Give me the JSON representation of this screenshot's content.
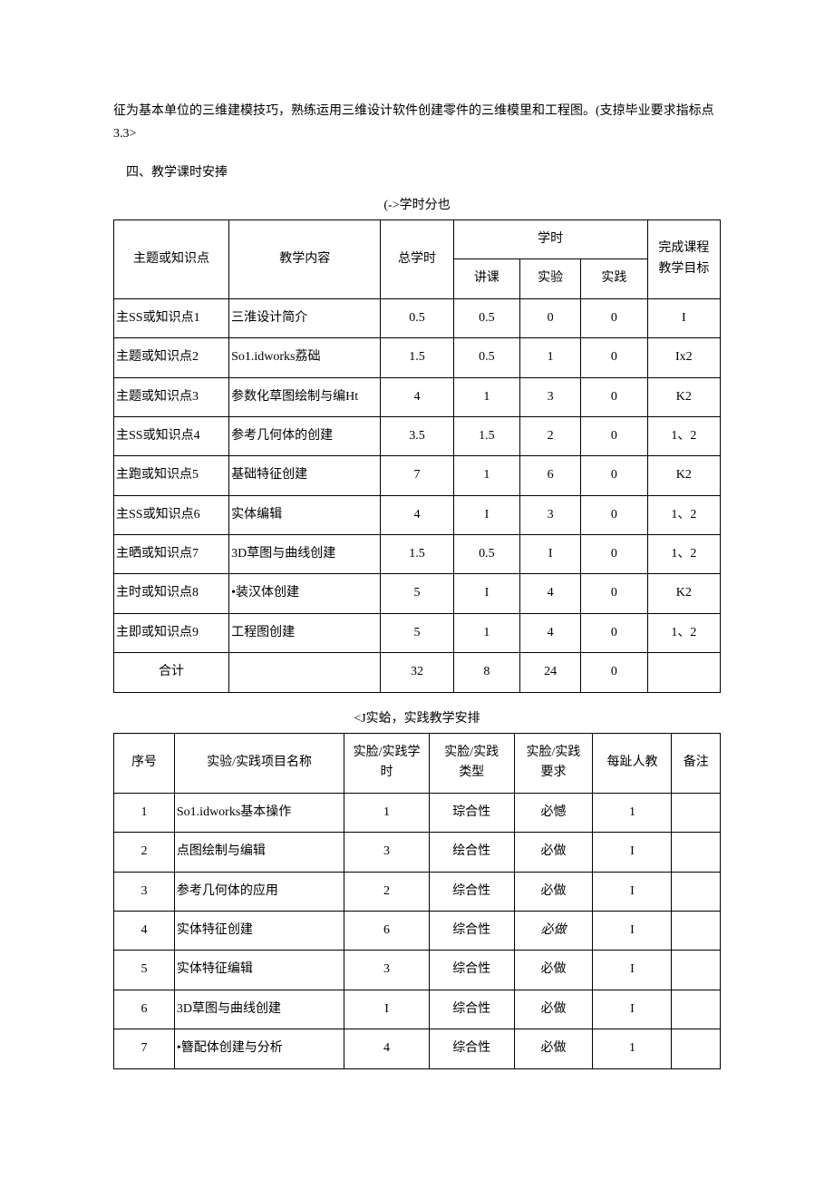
{
  "intro_para": "征为基本单位的三维建模技巧，熟练运用三维设计软件创建零件的三维模里和工程图。(支掠毕业要求指标点3.3>",
  "section4_title": "四、教学课时安捧",
  "table1_caption": "(->学时分也",
  "table1": {
    "header": {
      "c0": "主题或知识点",
      "c1": "教学内容",
      "c2": "总学时",
      "c3_group": "学时",
      "c3": "讲课",
      "c4": "实验",
      "c5": "实践",
      "c6_top": "完成课程",
      "c6_bot": "教学目标"
    },
    "rows": [
      {
        "c0": "主SS或知识点1",
        "c1": "三淮设计简介",
        "c2": "0.5",
        "c3": "0.5",
        "c4": "0",
        "c5": "0",
        "c6": "I"
      },
      {
        "c0": "主题或知识点2",
        "c1": "So1.idworks荔础",
        "c2": "1.5",
        "c3": "0.5",
        "c4": "1",
        "c5": "0",
        "c6": "Ix2"
      },
      {
        "c0": "主题或知识点3",
        "c1": "参数化草图绘制与编Ht",
        "c2": "4",
        "c3": "1",
        "c4": "3",
        "c5": "0",
        "c6": "K2"
      },
      {
        "c0": "主SS或知识点4",
        "c1": "参考几何体的创建",
        "c2": "3.5",
        "c3": "1.5",
        "c4": "2",
        "c5": "0",
        "c6": "1、2"
      },
      {
        "c0": "主跑或知识点5",
        "c1": "基础特征创建",
        "c2": "7",
        "c3": "1",
        "c4": "6",
        "c5": "0",
        "c6": "K2"
      },
      {
        "c0": "主SS或知识点6",
        "c1": "实体编辑",
        "c2": "4",
        "c3": "I",
        "c4": "3",
        "c5": "0",
        "c6": "1、2"
      },
      {
        "c0": "主晒或知识点7",
        "c1": "3D草图与曲线创建",
        "c2": "1.5",
        "c3": "0.5",
        "c4": "I",
        "c5": "0",
        "c6": "1、2"
      },
      {
        "c0": "主时或知识点8",
        "c1": "•装汉体创建",
        "c2": "5",
        "c3": "I",
        "c4": "4",
        "c5": "0",
        "c6": "K2"
      },
      {
        "c0": "主即或知识点9",
        "c1": "工程图创建",
        "c2": "5",
        "c3": "1",
        "c4": "4",
        "c5": "0",
        "c6": "1、2"
      }
    ],
    "total_row": {
      "c0": "合计",
      "c1": "",
      "c2": "32",
      "c3": "8",
      "c4": "24",
      "c5": "0",
      "c6": ""
    }
  },
  "table2_caption": "<J实蛤，实践教学安排",
  "table2": {
    "header": {
      "c0": "序号",
      "c1": "实验/实践项目名称",
      "c2_a": "实脸/实践学",
      "c2_b": "时",
      "c3_a": "实脸/实践",
      "c3_b": "类型",
      "c4_a": "实脸/实践",
      "c4_b": "要求",
      "c5": "每趾人教",
      "c6": "备注"
    },
    "rows": [
      {
        "c0": "1",
        "c1": "So1.idworks基本操作",
        "c2": "1",
        "c3": "琮合性",
        "c4": "必憾",
        "c5": "1",
        "c6": "",
        "c4_italic": false
      },
      {
        "c0": "2",
        "c1": "点图绘制与编辑",
        "c2": "3",
        "c3": "绘合性",
        "c4": "必做",
        "c5": "I",
        "c6": "",
        "c4_italic": false
      },
      {
        "c0": "3",
        "c1": "参考几何体的应用",
        "c2": "2",
        "c3": "综合性",
        "c4": "必做",
        "c5": "I",
        "c6": "",
        "c4_italic": false
      },
      {
        "c0": "4",
        "c1": "实体特征创建",
        "c2": "6",
        "c3": "综合性",
        "c4": "必做",
        "c5": "I",
        "c6": "",
        "c4_italic": true
      },
      {
        "c0": "5",
        "c1": "实体特征编辑",
        "c2": "3",
        "c3": "综合性",
        "c4": "必做",
        "c5": "I",
        "c6": "",
        "c4_italic": false
      },
      {
        "c0": "6",
        "c1": "3D草图与曲线创建",
        "c2": "I",
        "c3": "综合性",
        "c4": "必做",
        "c5": "I",
        "c6": "",
        "c4_italic": false
      },
      {
        "c0": "7",
        "c1": "•簪配体创建与分析",
        "c2": "4",
        "c3": "综合性",
        "c4": "必做",
        "c5": "1",
        "c6": "",
        "c4_italic": false
      }
    ]
  }
}
